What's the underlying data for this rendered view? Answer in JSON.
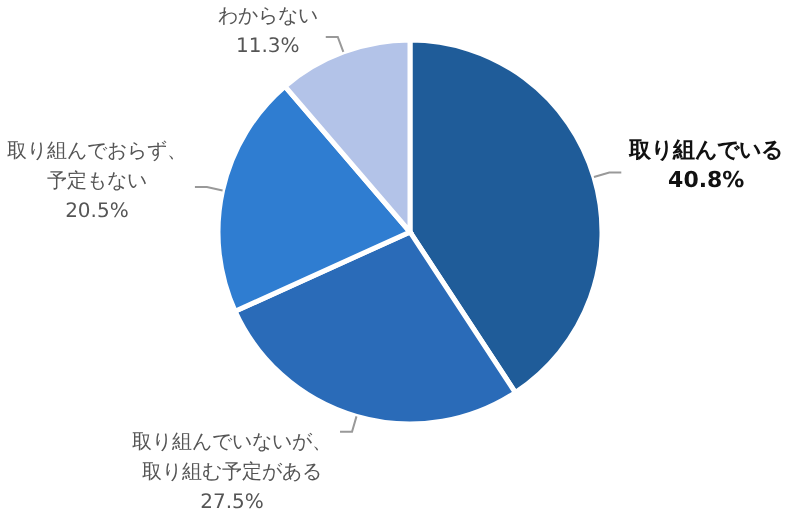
{
  "chart_data": {
    "type": "pie",
    "categories": [
      "取り組んでいる",
      "取り組んでいないが、取り組む予定がある",
      "取り組んでおらず、予定もない",
      "わからない"
    ],
    "values": [
      40.8,
      27.5,
      20.5,
      11.3
    ],
    "value_labels": [
      "40.8%",
      "27.5%",
      "20.5%",
      "11.3%"
    ],
    "colors": [
      "#1f5c99",
      "#2a6bb8",
      "#2f7dd1",
      "#b3c3e8"
    ]
  }
}
